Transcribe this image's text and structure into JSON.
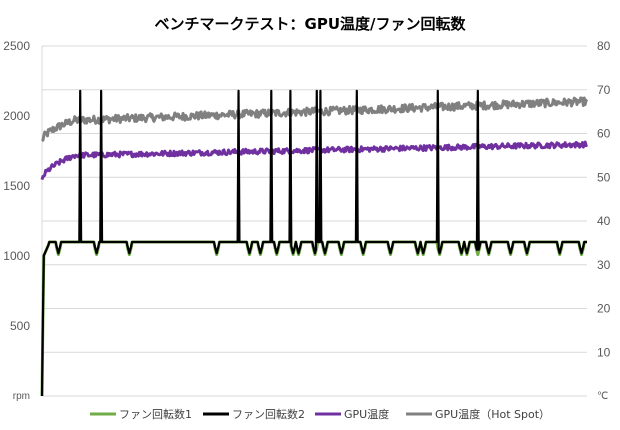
{
  "chart_data": {
    "type": "line",
    "title": "ベンチマークテスト：GPU温度/ファン回転数",
    "y_left": {
      "unit": "rpm",
      "range": [
        0,
        2500
      ],
      "ticks": [
        "500",
        "1000",
        "1500",
        "2000",
        "2500"
      ]
    },
    "y_right": {
      "unit": "℃",
      "range": [
        0,
        80
      ],
      "ticks": [
        "10",
        "20",
        "30",
        "40",
        "50",
        "60",
        "70",
        "80"
      ]
    },
    "grid": "horizontal",
    "legend_position": "bottom",
    "samples": 600,
    "series": [
      {
        "name": "ファン回転数1",
        "axis": "left",
        "color": "#70AD47",
        "profile": {
          "start": 0,
          "early": 1000,
          "plateau": 1100,
          "dip_to": 1010,
          "dips_at": [
            0.03,
            0.1,
            0.16,
            0.32,
            0.38,
            0.4,
            0.43,
            0.46,
            0.47,
            0.5,
            0.52,
            0.55,
            0.59,
            0.64,
            0.69,
            0.7,
            0.73,
            0.77,
            0.78,
            0.8,
            0.82,
            0.86,
            0.89,
            0.95,
            0.99
          ]
        }
      },
      {
        "name": "ファン回転数2",
        "axis": "left",
        "color": "#000000",
        "profile": {
          "start": 0,
          "early": 1000,
          "plateau": 1100,
          "dip_to": 1020,
          "dips_at": [
            0.03,
            0.1,
            0.16,
            0.32,
            0.38,
            0.4,
            0.43,
            0.46,
            0.47,
            0.5,
            0.52,
            0.55,
            0.59,
            0.64,
            0.69,
            0.7,
            0.73,
            0.77,
            0.78,
            0.8,
            0.82,
            0.86,
            0.89,
            0.95,
            0.99
          ],
          "spike_to": 2180,
          "spikes_at": [
            0.07,
            0.108,
            0.361,
            0.42,
            0.456,
            0.504,
            0.511,
            0.577,
            0.578,
            0.726,
            0.8
          ]
        }
      },
      {
        "name": "GPU温度",
        "axis": "right",
        "color": "#7030A0",
        "profile": {
          "start": 49,
          "ramp_to": 55,
          "end": 57.5,
          "noise": 0.6
        }
      },
      {
        "name": "GPU温度（Hot Spot）",
        "axis": "right",
        "color": "#808080",
        "profile": {
          "start": 58,
          "ramp_to": 63,
          "end": 67.3,
          "noise": 0.9
        }
      }
    ]
  }
}
